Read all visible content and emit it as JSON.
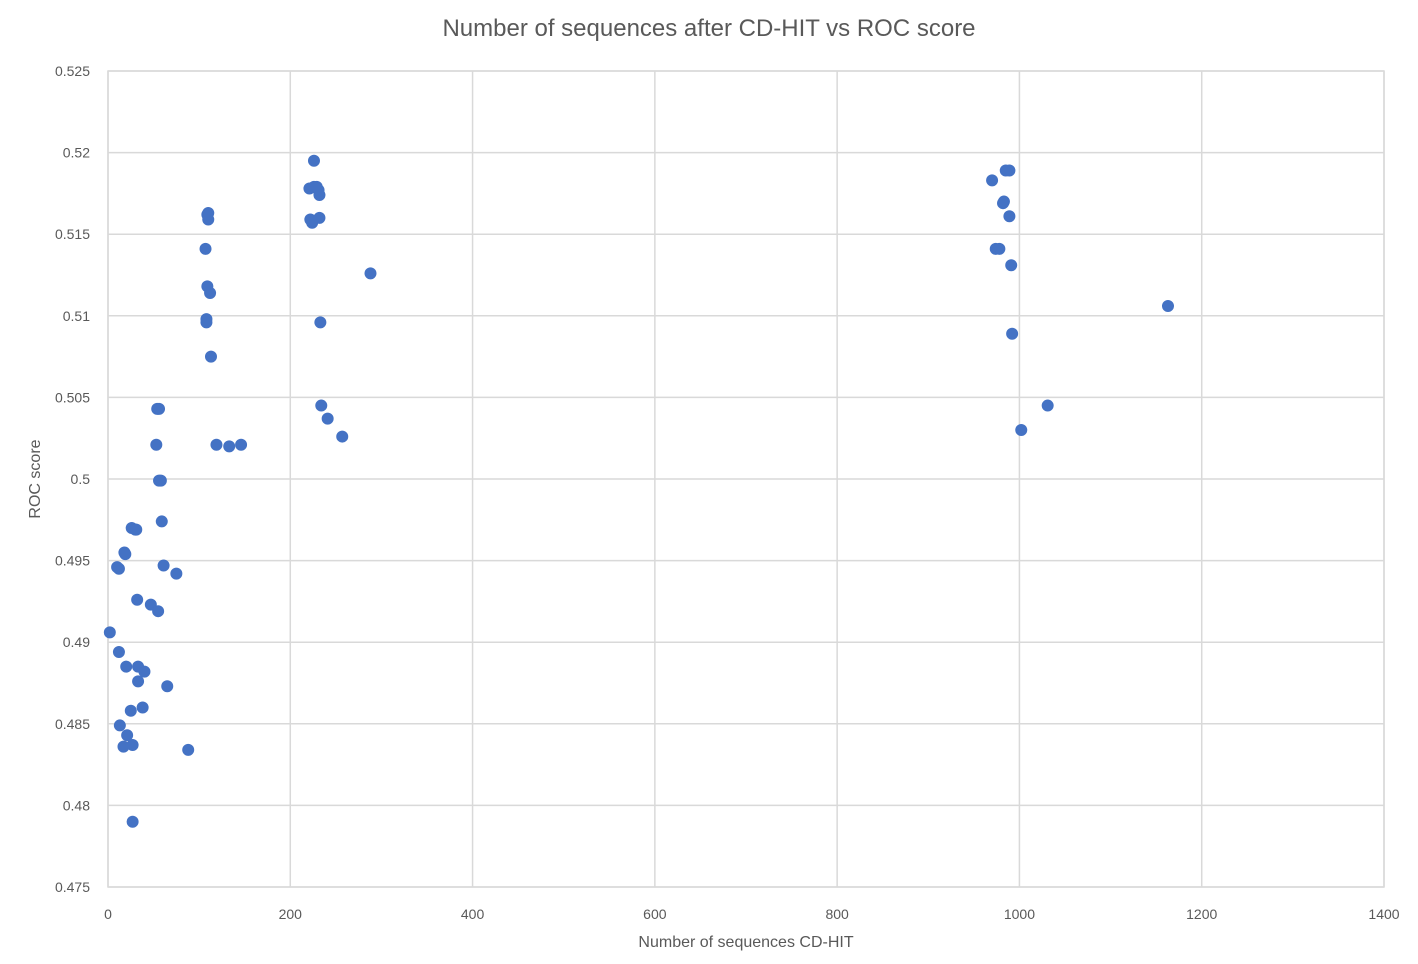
{
  "chart_data": {
    "type": "scatter",
    "title": "Number of sequences after CD-HIT vs ROC score",
    "xlabel": "Number of sequences CD-HIT",
    "ylabel": "ROC score",
    "xlim": [
      0,
      1400
    ],
    "ylim": [
      0.475,
      0.525
    ],
    "x_ticks": [
      0,
      200,
      400,
      600,
      800,
      1000,
      1200,
      1400
    ],
    "y_ticks": [
      0.475,
      0.48,
      0.485,
      0.49,
      0.495,
      0.5,
      0.505,
      0.51,
      0.515,
      0.52,
      0.525
    ],
    "x_tick_labels": [
      "0",
      "200",
      "400",
      "600",
      "800",
      "1000",
      "1200",
      "1400"
    ],
    "y_tick_labels": [
      "0.475",
      "0.48",
      "0.485",
      "0.49",
      "0.495",
      "0.5",
      "0.505",
      "0.51",
      "0.515",
      "0.52",
      "0.525"
    ],
    "grid": true,
    "legend": "none",
    "marker_color": "#4472C4",
    "series": [
      {
        "points": [
          [
            2,
            0.4906
          ],
          [
            10,
            0.4946
          ],
          [
            12,
            0.4945
          ],
          [
            12,
            0.4894
          ],
          [
            13,
            0.4849
          ],
          [
            17,
            0.4836
          ],
          [
            18,
            0.4955
          ],
          [
            19,
            0.4954
          ],
          [
            20,
            0.4885
          ],
          [
            21,
            0.4843
          ],
          [
            25,
            0.4858
          ],
          [
            26,
            0.497
          ],
          [
            27,
            0.4837
          ],
          [
            27,
            0.479
          ],
          [
            30,
            0.4969
          ],
          [
            31,
            0.4969
          ],
          [
            32,
            0.4926
          ],
          [
            33,
            0.4876
          ],
          [
            33,
            0.4885
          ],
          [
            38,
            0.486
          ],
          [
            40,
            0.4882
          ],
          [
            47,
            0.4923
          ],
          [
            53,
            0.5021
          ],
          [
            54,
            0.5043
          ],
          [
            55,
            0.4919
          ],
          [
            56,
            0.5043
          ],
          [
            56,
            0.4999
          ],
          [
            58,
            0.4999
          ],
          [
            59,
            0.4974
          ],
          [
            61,
            0.4947
          ],
          [
            65,
            0.4873
          ],
          [
            75,
            0.4942
          ],
          [
            88,
            0.4834
          ],
          [
            107,
            0.5141
          ],
          [
            108,
            0.5098
          ],
          [
            108,
            0.5096
          ],
          [
            109,
            0.5162
          ],
          [
            109,
            0.5118
          ],
          [
            110,
            0.5163
          ],
          [
            110,
            0.5159
          ],
          [
            112,
            0.5114
          ],
          [
            113,
            0.5075
          ],
          [
            119,
            0.5021
          ],
          [
            133,
            0.502
          ],
          [
            146,
            0.5021
          ],
          [
            221,
            0.5178
          ],
          [
            222,
            0.5159
          ],
          [
            224,
            0.5157
          ],
          [
            226,
            0.5195
          ],
          [
            226,
            0.5179
          ],
          [
            229,
            0.5179
          ],
          [
            231,
            0.5177
          ],
          [
            232,
            0.5174
          ],
          [
            232,
            0.516
          ],
          [
            233,
            0.5096
          ],
          [
            234,
            0.5045
          ],
          [
            241,
            0.5037
          ],
          [
            257,
            0.5026
          ],
          [
            288,
            0.5126
          ],
          [
            970,
            0.5183
          ],
          [
            974,
            0.5141
          ],
          [
            978,
            0.5141
          ],
          [
            982,
            0.5169
          ],
          [
            983,
            0.517
          ],
          [
            985,
            0.5189
          ],
          [
            989,
            0.5161
          ],
          [
            989,
            0.5189
          ],
          [
            991,
            0.5131
          ],
          [
            992,
            0.5089
          ],
          [
            1002,
            0.503
          ],
          [
            1031,
            0.5045
          ],
          [
            1163,
            0.5106
          ]
        ]
      }
    ]
  }
}
